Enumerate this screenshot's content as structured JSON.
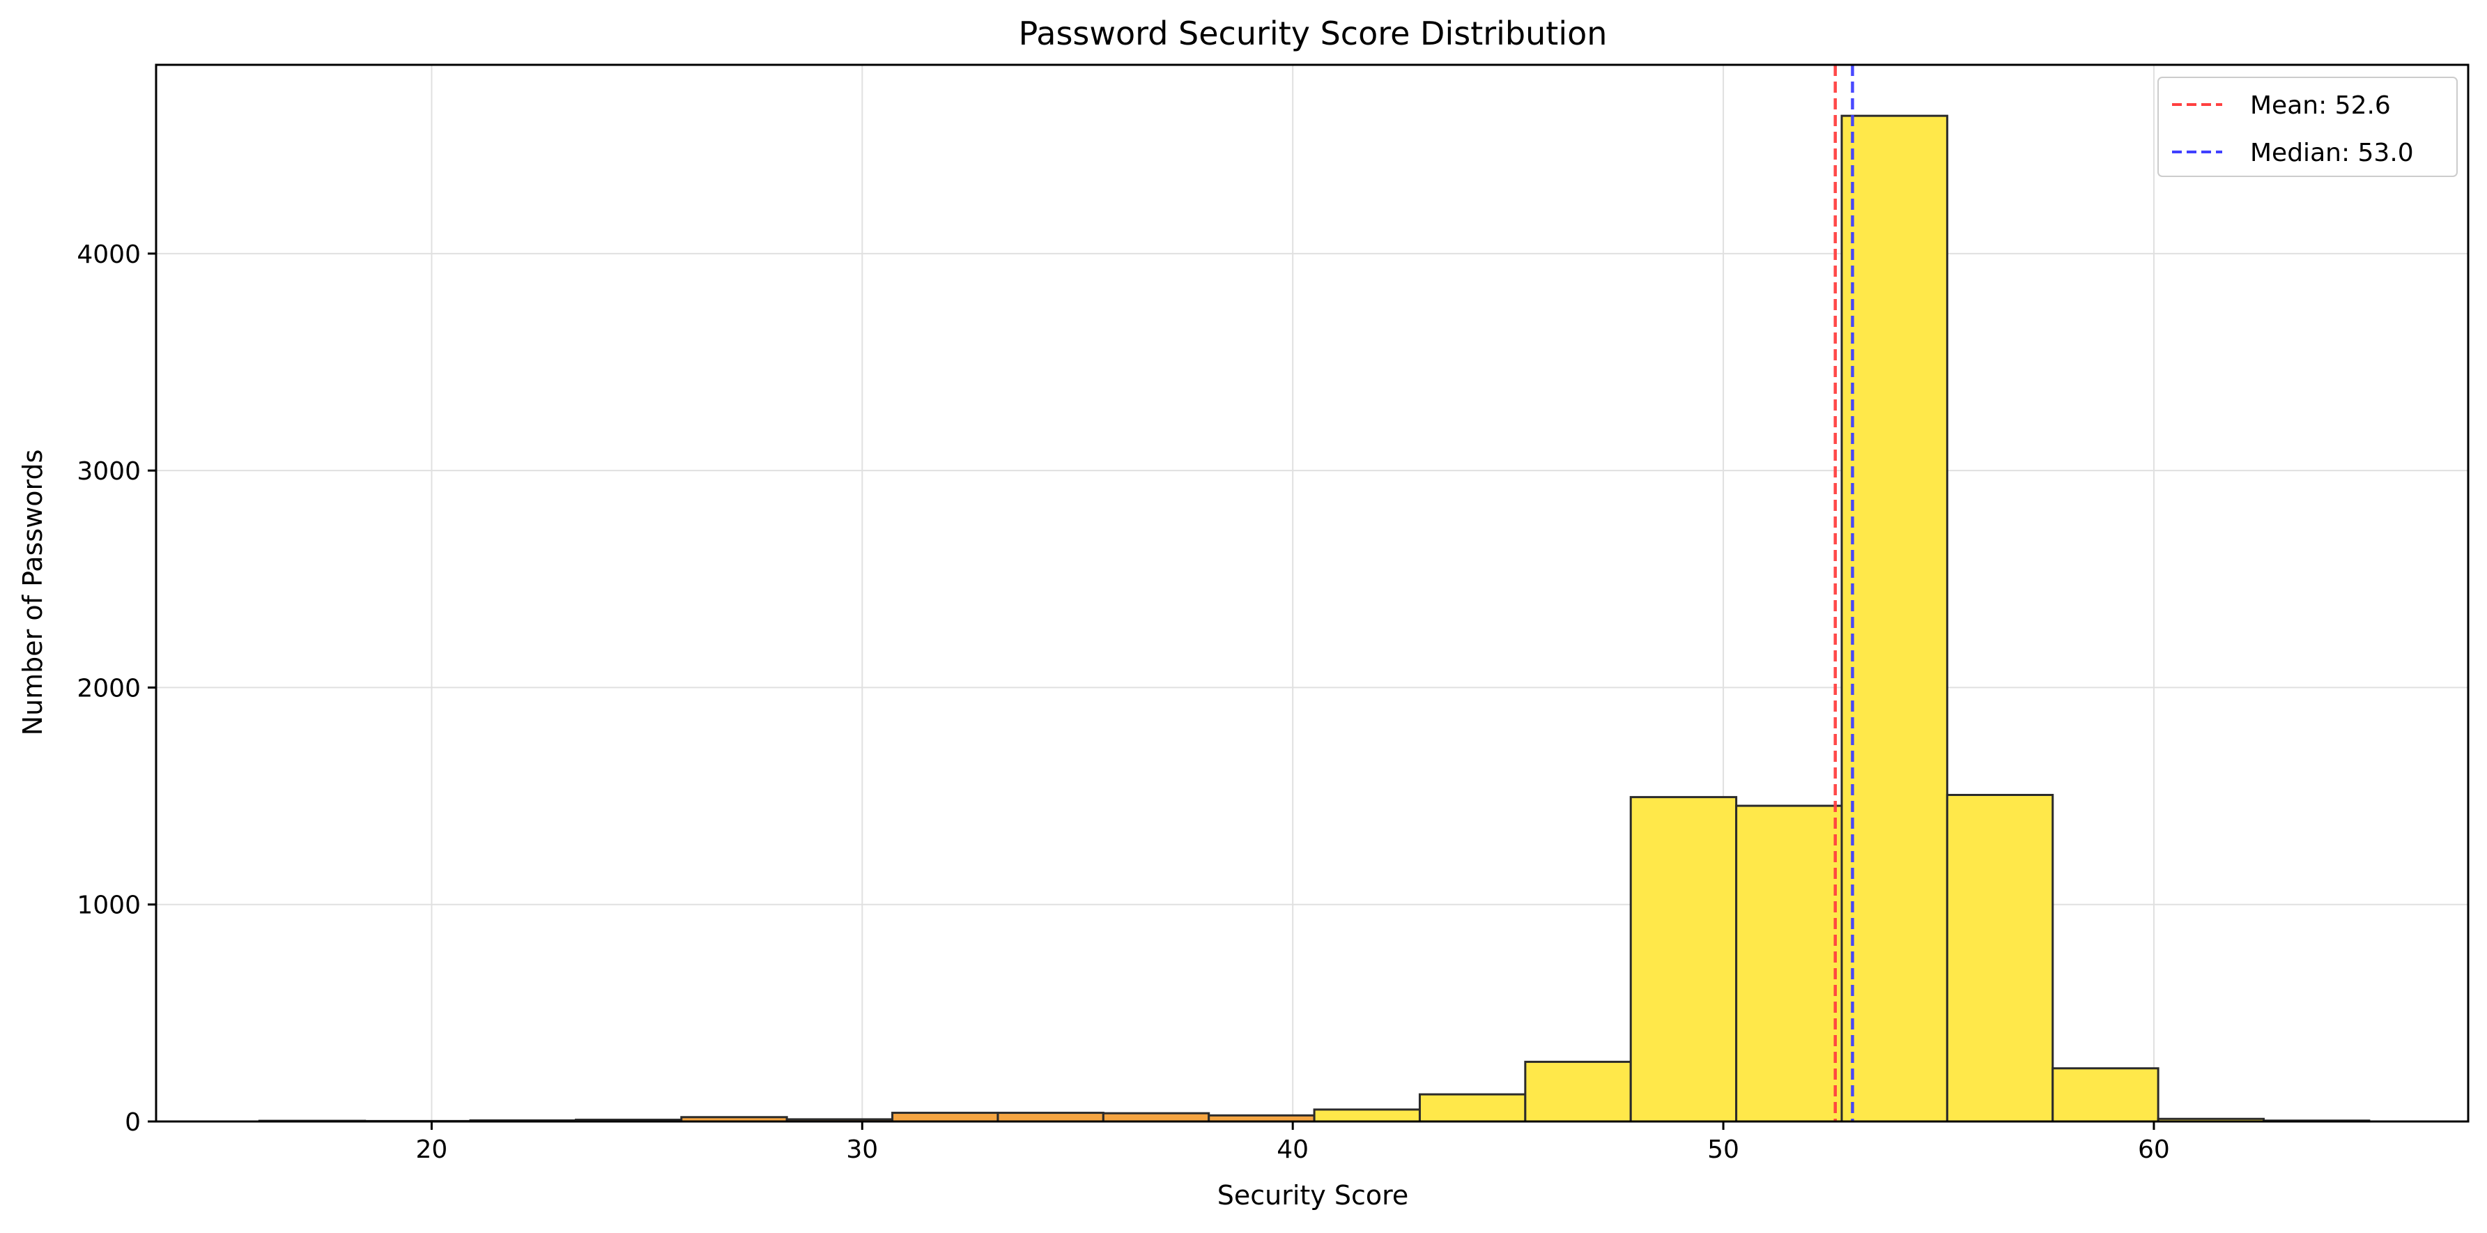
{
  "chart_data": {
    "type": "bar",
    "title": "Password Security Score Distribution",
    "xlabel": "Security Score",
    "ylabel": "Number of Passwords",
    "xlim": [
      13.6,
      67.3
    ],
    "ylim": [
      0,
      4870
    ],
    "xticks": [
      20,
      30,
      40,
      50,
      60
    ],
    "yticks": [
      0,
      1000,
      2000,
      3000,
      4000
    ],
    "grid": true,
    "legend_position": "top-right",
    "bin_edges": [
      16.0,
      18.45,
      20.9,
      23.35,
      25.8,
      28.25,
      30.7,
      33.15,
      35.6,
      38.05,
      40.5,
      42.95,
      45.4,
      47.85,
      50.3,
      52.75,
      55.2,
      57.65,
      60.1,
      62.55,
      65.0
    ],
    "counts": [
      3,
      2,
      5,
      8,
      20,
      10,
      40,
      40,
      38,
      28,
      55,
      125,
      275,
      1495,
      1455,
      4635,
      1505,
      245,
      12,
      4
    ],
    "bar_colors": [
      "#f08c28",
      "#f08c28",
      "#f08c28",
      "#f08c28",
      "#f5a542",
      "#f5a542",
      "#f5a542",
      "#f5a542",
      "#f5a542",
      "#f5a542",
      "#ffe84a",
      "#ffe84a",
      "#ffe84a",
      "#ffe84a",
      "#ffe84a",
      "#ffe84a",
      "#ffe84a",
      "#ffe84a",
      "#ffe84a",
      "#ffe84a"
    ],
    "reference_lines": [
      {
        "name": "Mean: 52.6",
        "value": 52.6,
        "color": "#ff4040",
        "style": "dashed"
      },
      {
        "name": "Median: 53.0",
        "value": 53.0,
        "color": "#4040ff",
        "style": "dashed"
      }
    ],
    "edge_color": "#2b2b2b",
    "grid_color": "#e0e0e0"
  }
}
